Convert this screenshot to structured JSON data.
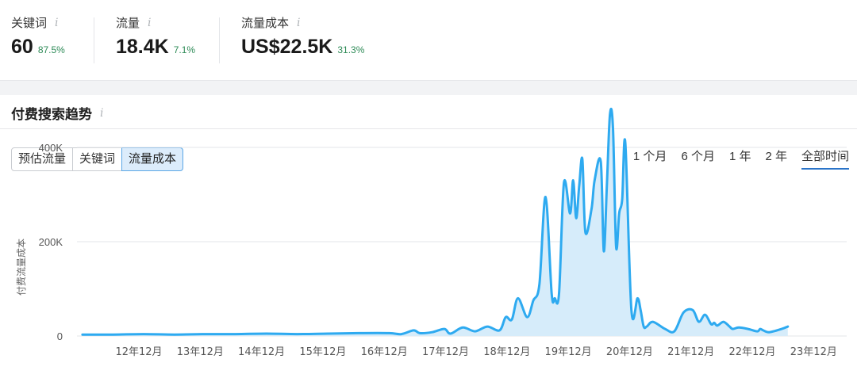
{
  "metrics": [
    {
      "label": "关键词",
      "value": "60",
      "change": "87.5%"
    },
    {
      "label": "流量",
      "value": "18.4K",
      "change": "7.1%"
    },
    {
      "label": "流量成本",
      "value": "US$22.5K",
      "change": "31.3%"
    }
  ],
  "info_glyph": "i",
  "section": {
    "title": "付费搜索趋势"
  },
  "tabs": [
    "预估流量",
    "关键词",
    "流量成本"
  ],
  "active_tab": "流量成本",
  "ranges": [
    "1 个月",
    "6 个月",
    "1 年",
    "2 年",
    "全部时间"
  ],
  "active_range": "全部时间",
  "colors": {
    "line": "#2eaaf0",
    "fill": "#d6ecfa",
    "grid": "#e3e5e8",
    "positive": "#2e8b57"
  },
  "chart_data": {
    "type": "area",
    "ylabel": "付费流量成本",
    "xlabel": "",
    "y_ticks": [
      "0",
      "200K",
      "400K"
    ],
    "ylim": [
      0,
      480000
    ],
    "grid": true,
    "x_ticks": [
      "12年12月",
      "13年12月",
      "14年12月",
      "15年12月",
      "16年12月",
      "17年12月",
      "18年12月",
      "19年12月",
      "20年12月",
      "21年12月",
      "22年12月",
      "23年12月"
    ],
    "series": [
      {
        "x": [
          2012.0,
          2012.5,
          2013.0,
          2013.5,
          2014.0,
          2014.5,
          2015.0,
          2015.5,
          2016.0,
          2016.5,
          2017.0,
          2017.2,
          2017.4,
          2017.5,
          2017.7,
          2017.9,
          2018.0,
          2018.2,
          2018.4,
          2018.6,
          2018.8,
          2018.9,
          2019.0,
          2019.1,
          2019.25,
          2019.35,
          2019.45,
          2019.55,
          2019.65,
          2019.7,
          2019.77,
          2019.85,
          2019.95,
          2020.0,
          2020.05,
          2020.1,
          2020.15,
          2020.2,
          2020.3,
          2020.35,
          2020.45,
          2020.5,
          2020.55,
          2020.6,
          2020.65,
          2020.7,
          2020.75,
          2020.8,
          2020.85,
          2020.95,
          2021.05,
          2021.1,
          2021.15,
          2021.2,
          2021.3,
          2021.5,
          2021.65,
          2021.8,
          2021.95,
          2022.05,
          2022.15,
          2022.25,
          2022.3,
          2022.35,
          2022.45,
          2022.55,
          2022.6,
          2022.7,
          2022.85,
          2023.0,
          2023.05,
          2023.1,
          2023.2,
          2023.4,
          2023.5
        ],
        "y": [
          3000,
          3000,
          4000,
          3000,
          4000,
          4000,
          5000,
          4000,
          5000,
          6000,
          6000,
          4000,
          12000,
          6000,
          8000,
          15000,
          5000,
          18000,
          10000,
          20000,
          12000,
          40000,
          35000,
          80000,
          40000,
          75000,
          110000,
          295000,
          90000,
          80000,
          90000,
          325000,
          260000,
          330000,
          250000,
          320000,
          375000,
          220000,
          270000,
          330000,
          370000,
          180000,
          320000,
          470000,
          440000,
          190000,
          260000,
          290000,
          410000,
          55000,
          80000,
          55000,
          20000,
          20000,
          30000,
          15000,
          10000,
          50000,
          55000,
          30000,
          45000,
          25000,
          28000,
          22000,
          30000,
          20000,
          15000,
          18000,
          15000,
          10000,
          15000,
          12000,
          8000,
          15000,
          20000
        ]
      }
    ]
  }
}
